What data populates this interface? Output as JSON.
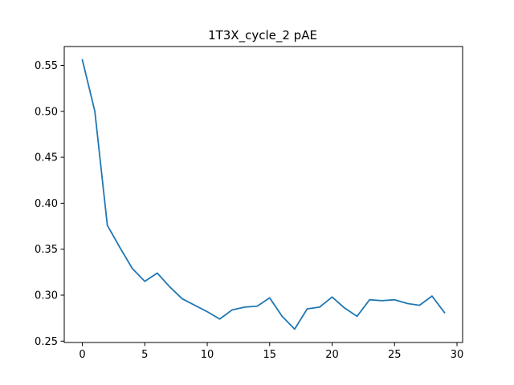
{
  "chart_data": {
    "type": "line",
    "title": "1T3X_cycle_2 pAE",
    "xlabel": "",
    "ylabel": "",
    "xlim": [
      -1.45,
      30.45
    ],
    "ylim": [
      0.2485,
      0.5705
    ],
    "x_ticks": [
      0,
      5,
      10,
      15,
      20,
      25,
      30
    ],
    "x_tick_labels": [
      "0",
      "5",
      "10",
      "15",
      "20",
      "25",
      "30"
    ],
    "y_ticks": [
      0.25,
      0.3,
      0.35,
      0.4,
      0.45,
      0.5,
      0.55
    ],
    "y_tick_labels": [
      "0.25",
      "0.30",
      "0.35",
      "0.40",
      "0.45",
      "0.50",
      "0.55"
    ],
    "grid": false,
    "legend": "none",
    "series": [
      {
        "color": "#1f77b4",
        "x": [
          0,
          1,
          2,
          3,
          4,
          5,
          6,
          7,
          8,
          9,
          10,
          11,
          12,
          13,
          14,
          15,
          16,
          17,
          18,
          19,
          20,
          21,
          22,
          23,
          24,
          25,
          26,
          27,
          28,
          29
        ],
        "values": [
          0.556,
          0.5,
          0.376,
          0.352,
          0.329,
          0.315,
          0.324,
          0.309,
          0.296,
          0.289,
          0.282,
          0.274,
          0.284,
          0.287,
          0.288,
          0.297,
          0.277,
          0.263,
          0.285,
          0.287,
          0.298,
          0.286,
          0.277,
          0.295,
          0.294,
          0.295,
          0.291,
          0.289,
          0.299,
          0.281
        ]
      }
    ]
  }
}
